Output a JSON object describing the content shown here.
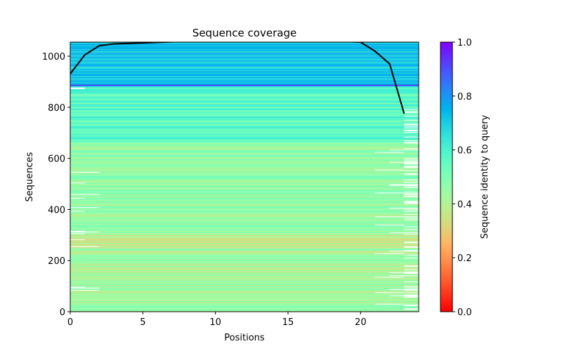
{
  "chart_data": {
    "type": "heatmap",
    "title": "Sequence coverage",
    "xlabel": "Positions",
    "ylabel": "Sequences",
    "xlim": [
      0,
      24
    ],
    "ylim": [
      0,
      1055
    ],
    "xticks": [
      0,
      5,
      10,
      15,
      20
    ],
    "yticks": [
      0,
      200,
      400,
      600,
      800,
      1000
    ],
    "colormap": "rainbow_r",
    "colorbar": {
      "label": "Sequence identity to query",
      "range": [
        0.0,
        1.0
      ],
      "ticks": [
        "0.0",
        "0.2",
        "0.4",
        "0.6",
        "0.8",
        "1.0"
      ]
    },
    "identity_bands": [
      {
        "sequences": [
          0,
          250
        ],
        "identity": 0.43
      },
      {
        "sequences": [
          250,
          300
        ],
        "identity": 0.38
      },
      {
        "sequences": [
          300,
          660
        ],
        "identity": 0.46
      },
      {
        "sequences": [
          660,
          880
        ],
        "identity": 0.57
      },
      {
        "sequences": [
          880,
          1055
        ],
        "identity": 0.72
      }
    ],
    "coverage_line": {
      "color": "#000000",
      "x": [
        0,
        1,
        2,
        3,
        4,
        5,
        6,
        7,
        8,
        9,
        10,
        11,
        12,
        13,
        14,
        15,
        16,
        17,
        18,
        19,
        20,
        21,
        22,
        23
      ],
      "y": [
        931,
        1005,
        1041,
        1048,
        1050,
        1052,
        1054,
        1056,
        1058,
        1058,
        1058,
        1058,
        1058,
        1058,
        1058,
        1058,
        1058,
        1058,
        1058,
        1057,
        1055,
        1019,
        970,
        775
      ]
    }
  }
}
